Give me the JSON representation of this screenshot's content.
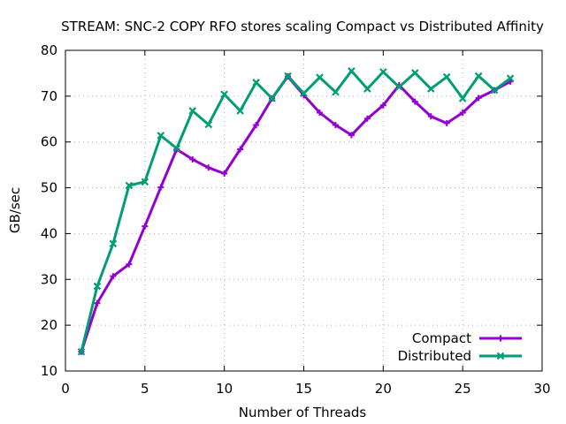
{
  "chart_data": {
    "type": "line",
    "title": "STREAM: SNC-2 COPY RFO stores scaling Compact vs Distributed Affinity",
    "xlabel": "Number of Threads",
    "ylabel": "GB/sec",
    "xlim": [
      0,
      30
    ],
    "ylim": [
      10,
      80
    ],
    "xticks": [
      "0",
      "5",
      "10",
      "15",
      "20",
      "25",
      "30"
    ],
    "yticks": [
      "10",
      "20",
      "30",
      "40",
      "50",
      "60",
      "70",
      "80"
    ],
    "grid": true,
    "legend_position": "bottom-right",
    "x": [
      1,
      2,
      3,
      4,
      5,
      6,
      7,
      8,
      9,
      10,
      11,
      12,
      13,
      14,
      15,
      16,
      17,
      18,
      19,
      20,
      21,
      22,
      23,
      24,
      25,
      26,
      27,
      28
    ],
    "series": [
      {
        "name": "Compact",
        "color": "#9400d3",
        "marker": "plus",
        "values": [
          14.2,
          24.8,
          30.7,
          33.3,
          41.6,
          50.1,
          58.4,
          56.2,
          54.4,
          53.1,
          58.4,
          63.7,
          69.5,
          74.3,
          70.2,
          66.4,
          63.7,
          61.5,
          65.1,
          68.0,
          72.4,
          68.8,
          65.6,
          64.1,
          66.4,
          69.6,
          71.3,
          73.2
        ]
      },
      {
        "name": "Distributed",
        "color": "#009e73",
        "marker": "cross",
        "values": [
          14.2,
          28.5,
          37.8,
          50.5,
          51.3,
          61.4,
          58.6,
          66.8,
          63.8,
          70.4,
          66.8,
          73.0,
          69.5,
          74.4,
          70.6,
          74.1,
          70.9,
          75.5,
          71.6,
          75.3,
          72.0,
          75.1,
          71.6,
          74.2,
          69.5,
          74.4,
          71.3,
          73.9
        ]
      }
    ]
  }
}
